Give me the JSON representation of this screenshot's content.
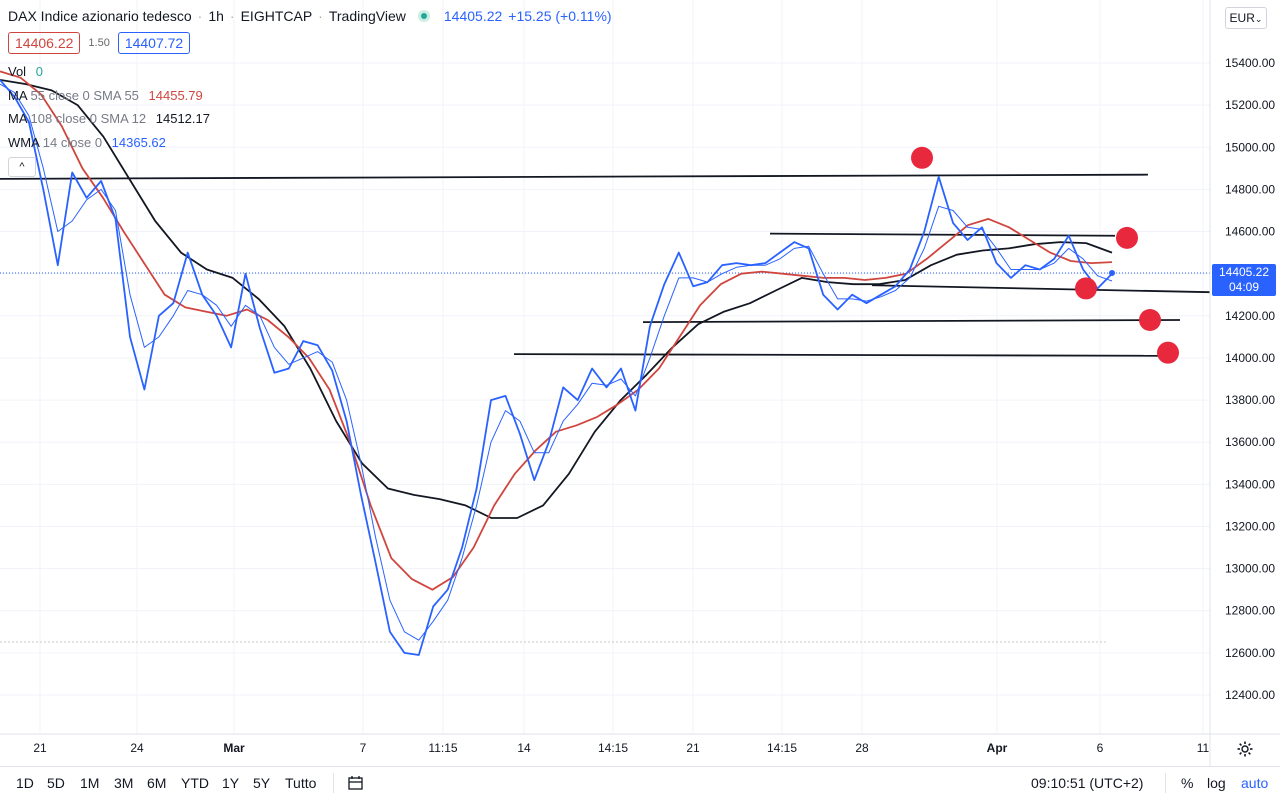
{
  "header": {
    "symbol_name": "DAX Indice azionario tedesco",
    "interval": "1h",
    "broker": "EIGHTCAP",
    "platform": "TradingView",
    "last_price": "14405.22",
    "change": "+15.25 (+0.11%)",
    "sell_price": "14406.22",
    "spread": "1.50",
    "buy_price": "14407.72",
    "collapse_label": "^"
  },
  "indicators": [
    {
      "name": "Vol",
      "params": "",
      "value": "0",
      "color": "#26a69a"
    },
    {
      "name": "MA",
      "params": "55 close 0 SMA 55",
      "value": "14455.79",
      "color": "#d0463e"
    },
    {
      "name": "MA",
      "params": "108 close 0 SMA 12",
      "value": "14512.17",
      "color": "#131722"
    },
    {
      "name": "WMA",
      "params": "14 close 0",
      "value": "14365.62",
      "color": "#2962ff"
    }
  ],
  "price_axis": {
    "currency_button": "EUR",
    "last_label_price": "14405.22",
    "last_label_countdown": "04:09"
  },
  "bottom_toolbar": {
    "ranges": [
      "1D",
      "5D",
      "1M",
      "3M",
      "6M",
      "YTD",
      "1Y",
      "5Y",
      "Tutto"
    ],
    "clock": "09:10:51 (UTC+2)",
    "percent": "%",
    "log": "log",
    "auto": "auto"
  },
  "colors": {
    "price_line": "#2962ff",
    "wma_line": "#2962ff",
    "ma55_line": "#d0463e",
    "ma108_line": "#131722",
    "markers": "#e8293d",
    "accent": "#2962ff"
  },
  "chart_data": {
    "type": "line",
    "ylim": [
      12300,
      15700
    ],
    "y_ticks": [
      12400,
      12600,
      12800,
      13000,
      13200,
      13400,
      13600,
      13800,
      14000,
      14200,
      14400,
      14600,
      14800,
      15000,
      15200,
      15400
    ],
    "y_tick_labels": [
      "12400.00",
      "12600.00",
      "12800.00",
      "13000.00",
      "13200.00",
      "13400.00",
      "13600.00",
      "13800.00",
      "14000.00",
      "14200.00",
      "14400.00",
      "14600.00",
      "14800.00",
      "15000.00",
      "15200.00",
      "15400.00"
    ],
    "x_labels": [
      "21",
      "24",
      "Mar",
      "7",
      "11:15",
      "14",
      "14:15",
      "21",
      "14:15",
      "28",
      "Apr",
      "6",
      "11"
    ],
    "x_label_bold": [
      "Mar",
      "Apr"
    ],
    "series": [
      {
        "name": "DAX Indice azionario tedesco",
        "color": "#2962ff",
        "values": [
          15320,
          15240,
          15120,
          14800,
          14440,
          14880,
          14760,
          14840,
          14660,
          14100,
          13850,
          14200,
          14260,
          14500,
          14300,
          14200,
          14050,
          14400,
          14140,
          13930,
          13950,
          14080,
          14060,
          13940,
          13700,
          13350,
          13030,
          12700,
          12600,
          12590,
          12820,
          12900,
          13100,
          13380,
          13800,
          13820,
          13640,
          13420,
          13600,
          13860,
          13800,
          13950,
          13860,
          13950,
          13750,
          14150,
          14350,
          14500,
          14340,
          14360,
          14440,
          14450,
          14440,
          14450,
          14500,
          14550,
          14520,
          14300,
          14230,
          14300,
          14260,
          14300,
          14340,
          14420,
          14600,
          14860,
          14640,
          14560,
          14620,
          14450,
          14380,
          14440,
          14420,
          14470,
          14580,
          14420,
          14330,
          14400
        ]
      },
      {
        "name": "WMA",
        "color": "#2962ff",
        "values": [
          15300,
          15260,
          15150,
          14900,
          14600,
          14650,
          14750,
          14800,
          14700,
          14300,
          14050,
          14100,
          14200,
          14320,
          14300,
          14250,
          14150,
          14250,
          14200,
          14050,
          13970,
          14000,
          14030,
          13980,
          13800,
          13500,
          13150,
          12850,
          12700,
          12660,
          12750,
          12850,
          13050,
          13300,
          13600,
          13750,
          13700,
          13550,
          13550,
          13700,
          13780,
          13880,
          13870,
          13900,
          13820,
          14000,
          14200,
          14380,
          14380,
          14360,
          14400,
          14430,
          14440,
          14440,
          14470,
          14520,
          14530,
          14400,
          14280,
          14280,
          14270,
          14290,
          14320,
          14380,
          14520,
          14720,
          14700,
          14620,
          14610,
          14520,
          14420,
          14420,
          14420,
          14450,
          14520,
          14470,
          14390,
          14365
        ]
      },
      {
        "name": "MA 55",
        "color": "#d0463e",
        "values": [
          15360,
          15330,
          15250,
          15100,
          14900,
          14760,
          14600,
          14450,
          14300,
          14240,
          14220,
          14200,
          14230,
          14180,
          14100,
          14000,
          13850,
          13600,
          13300,
          13050,
          12950,
          12900,
          12960,
          13100,
          13300,
          13450,
          13560,
          13650,
          13680,
          13720,
          13780,
          13850,
          13950,
          14100,
          14250,
          14350,
          14400,
          14410,
          14400,
          14390,
          14380,
          14380,
          14370,
          14380,
          14400,
          14470,
          14550,
          14630,
          14660,
          14620,
          14560,
          14500,
          14460,
          14450,
          14455
        ]
      },
      {
        "name": "MA 108",
        "color": "#131722",
        "values": [
          15320,
          15300,
          15270,
          15200,
          15050,
          14850,
          14650,
          14500,
          14420,
          14380,
          14280,
          14150,
          13950,
          13700,
          13500,
          13380,
          13350,
          13330,
          13300,
          13240,
          13240,
          13300,
          13450,
          13650,
          13800,
          13920,
          14050,
          14160,
          14220,
          14260,
          14320,
          14380,
          14360,
          14350,
          14350,
          14370,
          14440,
          14490,
          14510,
          14520,
          14540,
          14550,
          14545,
          14500
        ]
      }
    ],
    "horizontal_levels": [
      {
        "y_start": 14850,
        "y_end": 14870
      },
      {
        "y_start": 14590,
        "y_end": 14580
      },
      {
        "y_start": 14345,
        "y_end": 14312
      },
      {
        "y_start": 14170,
        "y_end": 14180
      },
      {
        "y_start": 14018,
        "y_end": 14010
      }
    ],
    "markers": [
      14950,
      14570,
      14330,
      14180,
      14025
    ],
    "grid": true
  }
}
